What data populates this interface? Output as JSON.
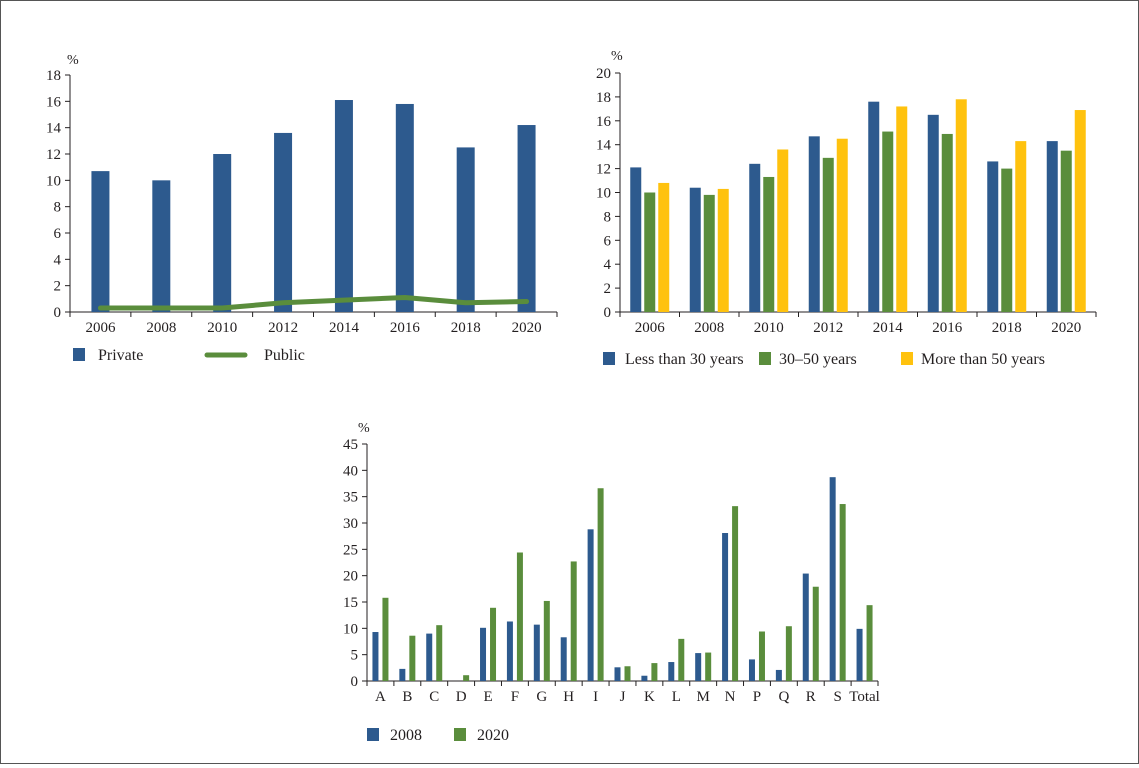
{
  "chart_data": [
    {
      "type": "bar",
      "title": "",
      "unit_label": "%",
      "xlabel": "",
      "ylabel": "",
      "categories": [
        "2006",
        "2008",
        "2010",
        "2012",
        "2014",
        "2016",
        "2018",
        "2020"
      ],
      "series": [
        {
          "name": "Private",
          "kind": "bar",
          "color": "#2d5a8e",
          "values": [
            10.7,
            10.0,
            12.0,
            13.6,
            16.1,
            15.8,
            12.5,
            14.2
          ]
        },
        {
          "name": "Public",
          "kind": "line",
          "color": "#5a8d3c",
          "values": [
            0.3,
            0.3,
            0.3,
            0.7,
            0.9,
            1.1,
            0.7,
            0.8
          ]
        }
      ],
      "ylim": [
        0,
        18
      ],
      "yticks": [
        "0",
        "2",
        "4",
        "6",
        "8",
        "10",
        "12",
        "14",
        "16",
        "18"
      ],
      "grid": false,
      "legend_position": "bottom-left"
    },
    {
      "type": "bar",
      "title": "",
      "unit_label": "%",
      "xlabel": "",
      "ylabel": "",
      "categories": [
        "2006",
        "2008",
        "2010",
        "2012",
        "2014",
        "2016",
        "2018",
        "2020"
      ],
      "series": [
        {
          "name": "Less than 30 years",
          "color": "#2d5a8e",
          "values": [
            12.1,
            10.4,
            12.4,
            14.7,
            17.6,
            16.5,
            12.6,
            14.3
          ]
        },
        {
          "name": "30–50 years",
          "color": "#5a8d3c",
          "values": [
            10.0,
            9.8,
            11.3,
            12.9,
            15.1,
            14.9,
            12.0,
            13.5
          ]
        },
        {
          "name": "More than 50 years",
          "color": "#ffc20e",
          "values": [
            10.8,
            10.3,
            13.6,
            14.5,
            17.2,
            17.8,
            14.3,
            16.9
          ]
        }
      ],
      "ylim": [
        0,
        20
      ],
      "yticks": [
        "0",
        "2",
        "4",
        "6",
        "8",
        "10",
        "12",
        "14",
        "16",
        "18",
        "20"
      ],
      "grid": false,
      "legend_position": "bottom"
    },
    {
      "type": "bar",
      "title": "",
      "unit_label": "%",
      "xlabel": "",
      "ylabel": "",
      "categories": [
        "A",
        "B",
        "C",
        "D",
        "E",
        "F",
        "G",
        "H",
        "I",
        "J",
        "K",
        "L",
        "M",
        "N",
        "P",
        "Q",
        "R",
        "S",
        "Total"
      ],
      "series": [
        {
          "name": "2008",
          "color": "#2d5a8e",
          "values": [
            9.3,
            2.3,
            9.0,
            0.0,
            10.1,
            11.3,
            10.7,
            8.3,
            28.8,
            2.6,
            1.0,
            3.6,
            5.3,
            28.1,
            4.1,
            2.1,
            20.4,
            38.7,
            9.9
          ]
        },
        {
          "name": "2020",
          "color": "#5a8d3c",
          "values": [
            15.8,
            8.6,
            10.6,
            1.1,
            13.9,
            24.4,
            15.2,
            22.7,
            36.6,
            2.8,
            3.4,
            8.0,
            5.4,
            33.2,
            9.4,
            10.4,
            17.9,
            33.6,
            14.4
          ]
        }
      ],
      "ylim": [
        0,
        45
      ],
      "yticks": [
        "0",
        "5",
        "10",
        "15",
        "20",
        "25",
        "30",
        "35",
        "40",
        "45"
      ],
      "grid": false,
      "legend_position": "bottom-left"
    }
  ]
}
